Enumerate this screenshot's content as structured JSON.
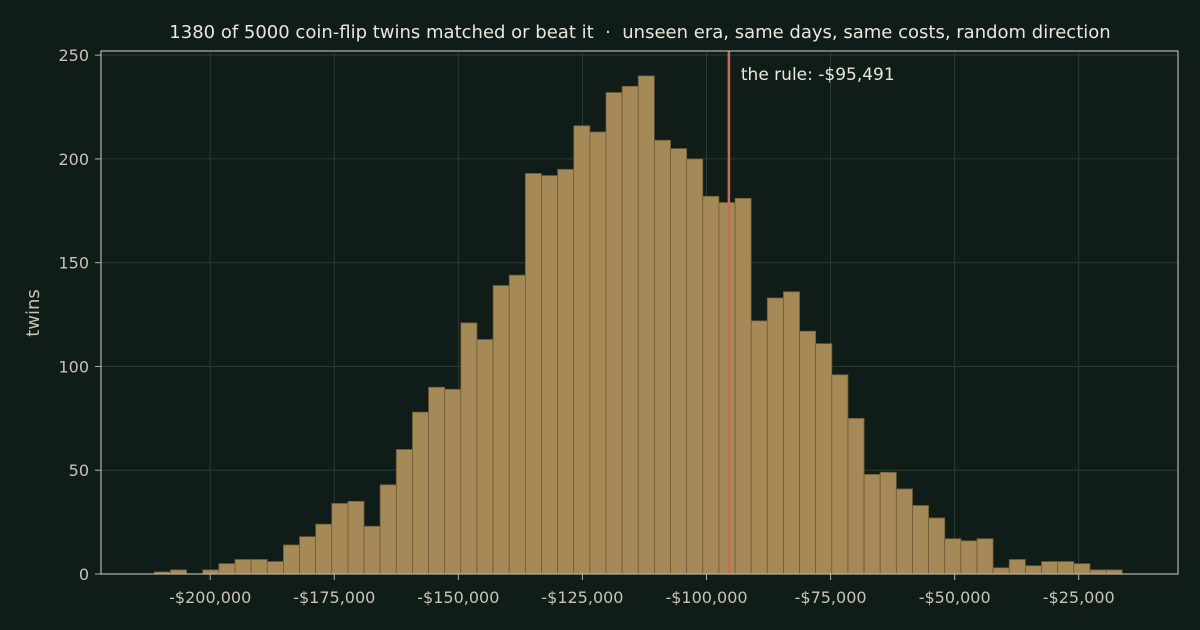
{
  "chart_data": {
    "type": "bar",
    "title": "1380 of 5000 coin-flip twins matched or beat it  ·  unseen era, same days, same costs, random direction",
    "xlabel": "",
    "ylabel": "twins",
    "xlim": [
      -222000,
      -5000
    ],
    "ylim": [
      0,
      252
    ],
    "x_ticks": [
      -200000,
      -175000,
      -150000,
      -125000,
      -100000,
      -75000,
      -50000,
      -25000
    ],
    "x_tick_labels": [
      "-$200,000",
      "-$175,000",
      "-$150,000",
      "-$125,000",
      "-$100,000",
      "-$75,000",
      "-$50,000",
      "-$25,000"
    ],
    "y_ticks": [
      0,
      50,
      100,
      150,
      200,
      250
    ],
    "y_tick_labels": [
      "0",
      "50",
      "100",
      "150",
      "200",
      "250"
    ],
    "grid": true,
    "bin_start": -214500,
    "bin_width": 3250,
    "values": [
      0,
      1,
      2,
      0,
      2,
      5,
      7,
      7,
      6,
      14,
      18,
      24,
      34,
      35,
      23,
      43,
      60,
      78,
      90,
      89,
      121,
      113,
      139,
      144,
      193,
      192,
      195,
      216,
      213,
      232,
      235,
      240,
      209,
      205,
      200,
      182,
      179,
      181,
      122,
      133,
      136,
      117,
      111,
      96,
      75,
      48,
      49,
      41,
      33,
      27,
      17,
      16,
      17,
      3,
      7,
      4,
      6,
      6,
      5,
      2,
      2
    ],
    "reference_line": {
      "value": -95491,
      "label": "the rule: -$95,491"
    }
  },
  "colors": {
    "background": "#0f1c17",
    "bar_fill": "#a58a58",
    "bar_edge": "#6e5a36",
    "reference_line": "#cd6a55",
    "axis": "#b9b4a7",
    "grid": "#2b3a33"
  }
}
